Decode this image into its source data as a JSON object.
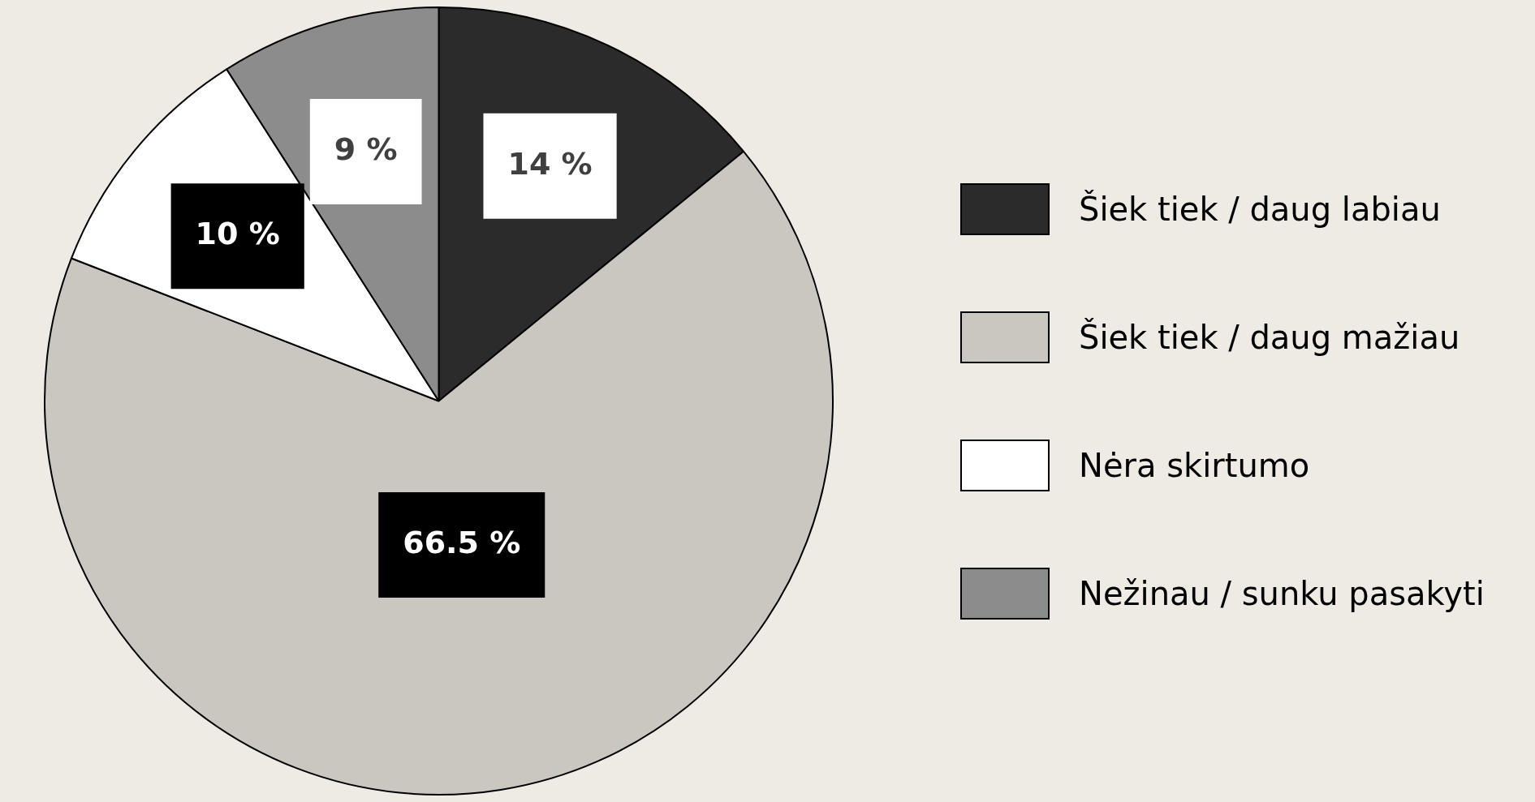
{
  "chart_data": {
    "type": "pie",
    "categories": [
      "Šiek tiek / daug labiau",
      "Šiek tiek / daug mažiau",
      "Nėra skirtumo",
      "Nežinau / sunku pasakyti"
    ],
    "values": [
      14,
      66.5,
      10,
      9
    ],
    "colors": [
      "#2b2b2b",
      "#c9c7bf",
      "#ffffff",
      "#8c8c8c"
    ],
    "value_labels": [
      "14 %",
      "66.5 %",
      "10 %",
      "9 %"
    ],
    "legend": "right"
  }
}
